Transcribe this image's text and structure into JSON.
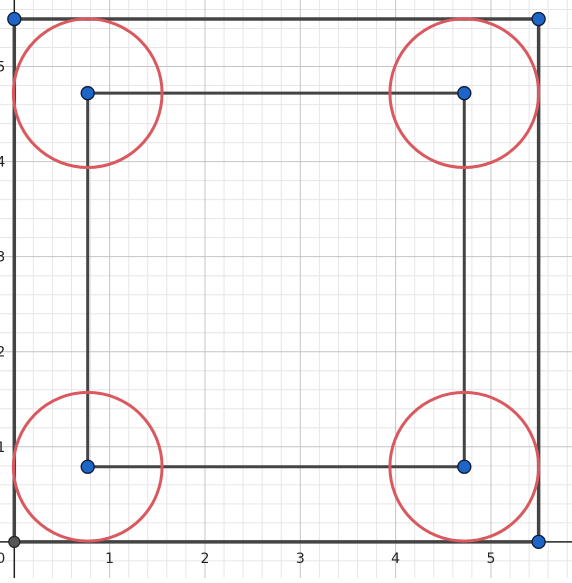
{
  "diagram": {
    "axes": {
      "x_range": [
        -0.15,
        5.85
      ],
      "y_range": [
        -0.38,
        5.7
      ],
      "x_ticks": [
        "1",
        "2",
        "3",
        "4",
        "5"
      ],
      "y_ticks": [
        "1",
        "2",
        "3",
        "4",
        "5"
      ],
      "origin_label": "0",
      "major_step": 1,
      "minor_step": 0.2,
      "grid": true
    },
    "outer_square": [
      [
        0,
        0
      ],
      [
        5.5,
        0
      ],
      [
        5.5,
        5.5
      ],
      [
        0,
        5.5
      ]
    ],
    "inner_square": [
      [
        0.77,
        0.79
      ],
      [
        4.72,
        0.79
      ],
      [
        4.72,
        4.72
      ],
      [
        0.77,
        4.72
      ]
    ],
    "circles": [
      {
        "center": [
          0.77,
          0.79
        ],
        "radius": 0.78
      },
      {
        "center": [
          4.72,
          0.79
        ],
        "radius": 0.78
      },
      {
        "center": [
          4.72,
          4.72
        ],
        "radius": 0.78
      },
      {
        "center": [
          0.77,
          4.72
        ],
        "radius": 0.78
      }
    ],
    "points_blue": [
      [
        5.5,
        0
      ],
      [
        5.5,
        5.5
      ],
      [
        0,
        5.5
      ],
      [
        0.77,
        0.79
      ],
      [
        4.72,
        0.79
      ],
      [
        4.72,
        4.72
      ],
      [
        0.77,
        4.72
      ]
    ],
    "points_gray": [
      [
        0,
        0
      ]
    ],
    "colors": {
      "square": "#444444",
      "circle": "#d9595f",
      "point_blue": "#1f65c8",
      "point_gray": "#555555",
      "point_stroke": "#0a1a33"
    }
  }
}
